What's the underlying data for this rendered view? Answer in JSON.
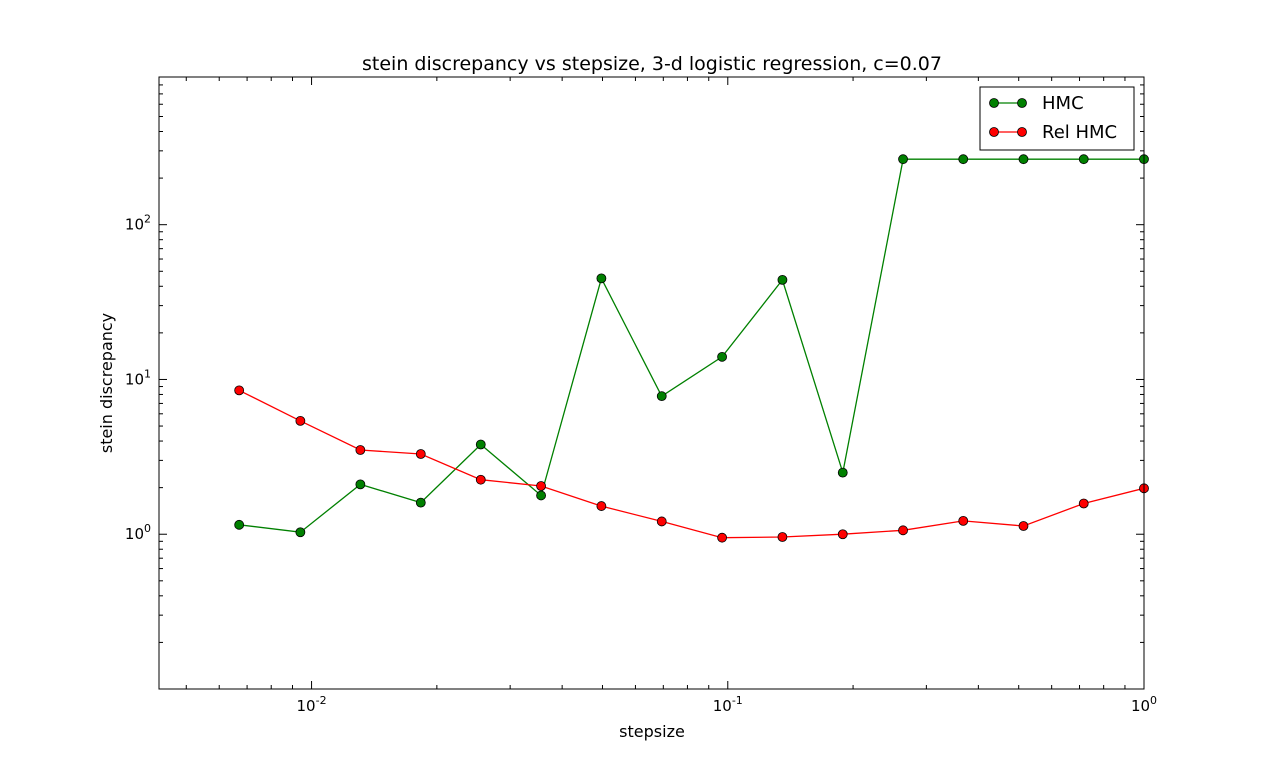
{
  "chart_data": {
    "type": "line",
    "title": "stein discrepancy vs stepsize, 3-d logistic regression, c=0.07",
    "xlabel": "stepsize",
    "ylabel": "stein discrepancy",
    "xscale": "log",
    "yscale": "log",
    "xlim": [
      0.0043,
      1.0
    ],
    "ylim": [
      0.1,
      900
    ],
    "x_ticks": [
      {
        "value": 0.01,
        "base": "10",
        "exp": "-2"
      },
      {
        "value": 0.1,
        "base": "10",
        "exp": "-1"
      },
      {
        "value": 1,
        "base": "10",
        "exp": "0"
      }
    ],
    "y_ticks": [
      {
        "value": 1,
        "base": "10",
        "exp": "0"
      },
      {
        "value": 10,
        "base": "10",
        "exp": "1"
      },
      {
        "value": 100,
        "base": "10",
        "exp": "2"
      }
    ],
    "grid": false,
    "legend_position": "top-right",
    "x": [
      0.0067,
      0.0094,
      0.0131,
      0.0183,
      0.0255,
      0.0356,
      0.0497,
      0.0694,
      0.0969,
      0.1353,
      0.1889,
      0.2637,
      0.3679,
      0.5134,
      0.7165,
      1.0
    ],
    "series": [
      {
        "name": "HMC",
        "color": "#008000",
        "values": [
          1.15,
          1.03,
          2.1,
          1.6,
          3.8,
          1.78,
          45,
          7.8,
          14,
          44,
          2.5,
          265,
          265,
          265,
          265,
          265
        ]
      },
      {
        "name": "Rel HMC",
        "color": "#ff0000",
        "values": [
          8.5,
          5.4,
          3.5,
          3.3,
          2.25,
          2.05,
          1.52,
          1.21,
          0.95,
          0.96,
          1.0,
          1.06,
          1.22,
          1.13,
          1.58,
          1.98
        ]
      }
    ]
  }
}
